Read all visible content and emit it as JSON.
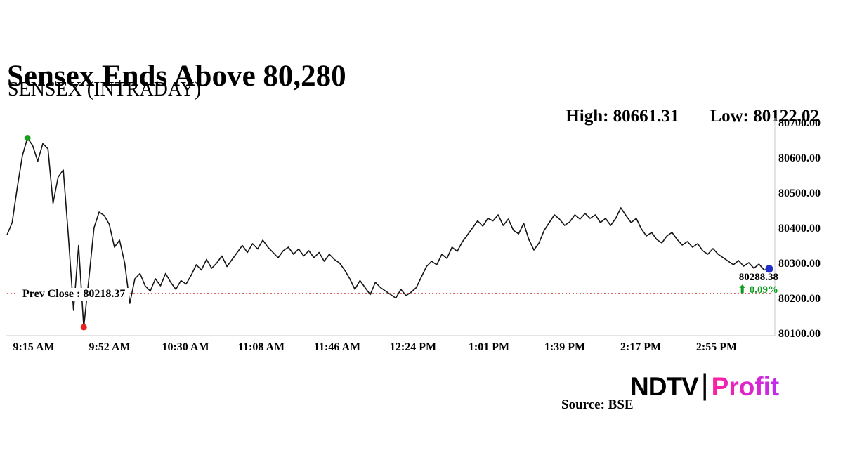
{
  "header": {
    "title": "Sensex Ends Above 80,280",
    "subtitle": "SENSEX (INTRADAY)",
    "high_label": "High: 80661.31",
    "low_label": "Low: 80122.02"
  },
  "annotations": {
    "prev_close_label": "Prev Close : 80218.37",
    "last_price_label": "80288.38",
    "up_arrow": "⬆",
    "change_label": "0.09%"
  },
  "footer": {
    "logo_ndtv": "NDTV",
    "logo_separator": "|",
    "logo_profit": "Profit",
    "source": "Source: BSE"
  },
  "chart_data": {
    "type": "line",
    "title": "SENSEX (INTRADAY)",
    "xlabel": "",
    "ylabel": "",
    "ylim": [
      80100,
      80700
    ],
    "grid": false,
    "legend": false,
    "x_ticks": [
      "9:15 AM",
      "9:52 AM",
      "10:30 AM",
      "11:08 AM",
      "11:46 AM",
      "12:24 PM",
      "1:01 PM",
      "1:39 PM",
      "2:17 PM",
      "2:55 PM"
    ],
    "y_ticks": [
      "80700.00",
      "80600.00",
      "80500.00",
      "80400.00",
      "80300.00",
      "80200.00",
      "80100.00"
    ],
    "high": 80661.31,
    "low": 80122.02,
    "prev_close": 80218.37,
    "last_price": 80288.38,
    "change_pct": 0.09,
    "line_color": "#141414",
    "high_dot_color": "#1e9e1e",
    "low_dot_color": "#e5231f",
    "last_dot_color": "#2230c9",
    "prev_close_line_color": "#d9534f",
    "change_color": "#0b9e1d",
    "axis_color": "#c9c9c9",
    "values": [
      80385,
      80420,
      80520,
      80610,
      80661,
      80640,
      80595,
      80645,
      80630,
      80475,
      80550,
      80570,
      80380,
      80170,
      80355,
      80122,
      80260,
      80405,
      80450,
      80440,
      80415,
      80350,
      80370,
      80305,
      80190,
      80260,
      80275,
      80240,
      80225,
      80260,
      80240,
      80275,
      80250,
      80230,
      80255,
      80245,
      80270,
      80300,
      80285,
      80315,
      80290,
      80305,
      80325,
      80295,
      80315,
      80335,
      80355,
      80335,
      80360,
      80345,
      80370,
      80350,
      80335,
      80320,
      80340,
      80350,
      80330,
      80345,
      80325,
      80340,
      80320,
      80335,
      80310,
      80330,
      80315,
      80305,
      80285,
      80260,
      80230,
      80255,
      80235,
      80215,
      80250,
      80235,
      80225,
      80215,
      80205,
      80230,
      80212,
      80222,
      80235,
      80265,
      80295,
      80310,
      80300,
      80330,
      80318,
      80350,
      80338,
      80365,
      80385,
      80405,
      80425,
      80410,
      80432,
      80425,
      80442,
      80412,
      80430,
      80398,
      80388,
      80418,
      80372,
      80342,
      80362,
      80398,
      80420,
      80442,
      80430,
      80412,
      80422,
      80442,
      80430,
      80446,
      80432,
      80442,
      80420,
      80432,
      80412,
      80432,
      80462,
      80440,
      80420,
      80432,
      80402,
      80382,
      80392,
      80372,
      80362,
      80382,
      80392,
      80372,
      80356,
      80366,
      80350,
      80360,
      80340,
      80330,
      80346,
      80330,
      80320,
      80310,
      80300,
      80312,
      80296,
      80306,
      80290,
      80302,
      80285,
      80288.38
    ]
  }
}
